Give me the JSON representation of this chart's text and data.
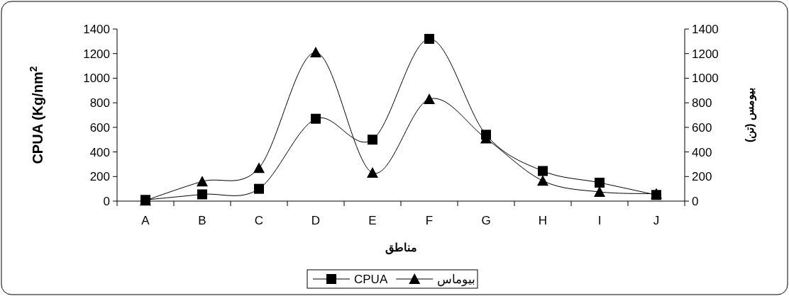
{
  "chart_data": {
    "type": "line",
    "xlabel": "مناطق",
    "ylabel": "CPUA (Kg/nm$^{2}$",
    "y2label": "بیومس (تن)",
    "categories": [
      "A",
      "B",
      "C",
      "D",
      "E",
      "F",
      "G",
      "H",
      "I",
      "J"
    ],
    "series": [
      {
        "name": "CPUA",
        "color": "#000000",
        "marker": "square",
        "values": [
          10,
          55,
          100,
          670,
          500,
          1320,
          540,
          245,
          150,
          50
        ]
      },
      {
        "name": "بیوماس",
        "color": "#000000",
        "marker": "triangle",
        "axis": "y2",
        "values": [
          5,
          160,
          270,
          1210,
          230,
          830,
          510,
          165,
          75,
          60
        ]
      }
    ],
    "ylim": [
      0,
      1400
    ],
    "yticks": [
      0,
      200,
      400,
      600,
      800,
      1000,
      1200,
      1400
    ],
    "y2lim": [
      0,
      1400
    ],
    "y2ticks": [
      0,
      200,
      400,
      600,
      800,
      1000,
      1200,
      1400
    ],
    "grid": false,
    "legend": "bottom",
    "line_style": "solid"
  }
}
